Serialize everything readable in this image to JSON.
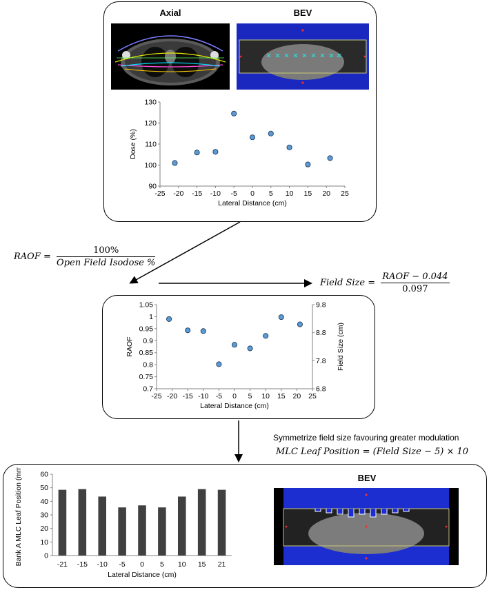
{
  "top_panel": {
    "axial_title": "Axial",
    "bev_title": "BEV",
    "axial_image_icon": "axial-ct-slice",
    "bev_image_icon": "beams-eye-view-open-field"
  },
  "formulas": {
    "raof_lhs": "RAOF =",
    "raof_num": "100%",
    "raof_den": "Open Field Isodose %",
    "fs_lhs": "Field Size =",
    "fs_num": "RAOF − 0.044",
    "fs_den": "0.097",
    "symmetrize_note": "Symmetrize field size favouring greater modulation",
    "mlc_formula": "MLC Leaf Position = (Field Size − 5) × 10"
  },
  "bottom_panel": {
    "bev_title": "BEV",
    "bev_image_icon": "beams-eye-view-modulated-field"
  },
  "colors": {
    "marker": "#5b9bd5",
    "bar": "#404040",
    "bev_blue": "#1d2ed0",
    "axis": "#808080"
  },
  "chart_data": [
    {
      "type": "scatter",
      "xlabel": "Lateral Distance (cm)",
      "ylabel": "Dose (%)",
      "xlim": [
        -25,
        25
      ],
      "ylim": [
        90,
        130
      ],
      "xticks": [
        "-25",
        "-20",
        "-15",
        "-10",
        "-5",
        "0",
        "5",
        "10",
        "15",
        "20",
        "25"
      ],
      "yticks": [
        "90",
        "100",
        "110",
        "120",
        "130"
      ],
      "x": [
        -21,
        -15,
        -10,
        -5,
        0,
        5,
        10,
        15,
        21
      ],
      "y": [
        101,
        106,
        106.3,
        124.5,
        113.2,
        115,
        108.4,
        100.3,
        103.3
      ]
    },
    {
      "type": "scatter",
      "xlabel": "Lateral Distance (cm)",
      "ylabel": "RAOF",
      "y2label": "Field Size (cm)",
      "xlim": [
        -25,
        25
      ],
      "ylim": [
        0.7,
        1.05
      ],
      "y2lim": [
        6.8,
        9.8
      ],
      "xticks": [
        "-25",
        "-20",
        "-15",
        "-10",
        "-5",
        "0",
        "5",
        "10",
        "15",
        "20",
        "25"
      ],
      "yticks": [
        "0.7",
        "0.75",
        "0.8",
        "0.85",
        "0.9",
        "0.95",
        "1",
        "1.05"
      ],
      "y2ticks": [
        "6.8",
        "7.8",
        "8.8",
        "9.8"
      ],
      "x": [
        -21,
        -15,
        -10,
        -5,
        0,
        5,
        10,
        15,
        21
      ],
      "y": [
        0.99,
        0.943,
        0.94,
        0.802,
        0.883,
        0.868,
        0.92,
        0.998,
        0.968
      ]
    },
    {
      "type": "bar",
      "xlabel": "Lateral Distance (cm)",
      "ylabel": "Bank A MLC Leaf Position (mm)",
      "ylim": [
        0,
        60
      ],
      "yticks": [
        "0",
        "10",
        "20",
        "30",
        "40",
        "50",
        "60"
      ],
      "categories": [
        "-21",
        "-15",
        "-10",
        "-5",
        "0",
        "5",
        "10",
        "15",
        "21"
      ],
      "values": [
        48.5,
        49,
        43.5,
        35.5,
        37,
        35.5,
        43.5,
        49,
        48.5
      ]
    }
  ]
}
